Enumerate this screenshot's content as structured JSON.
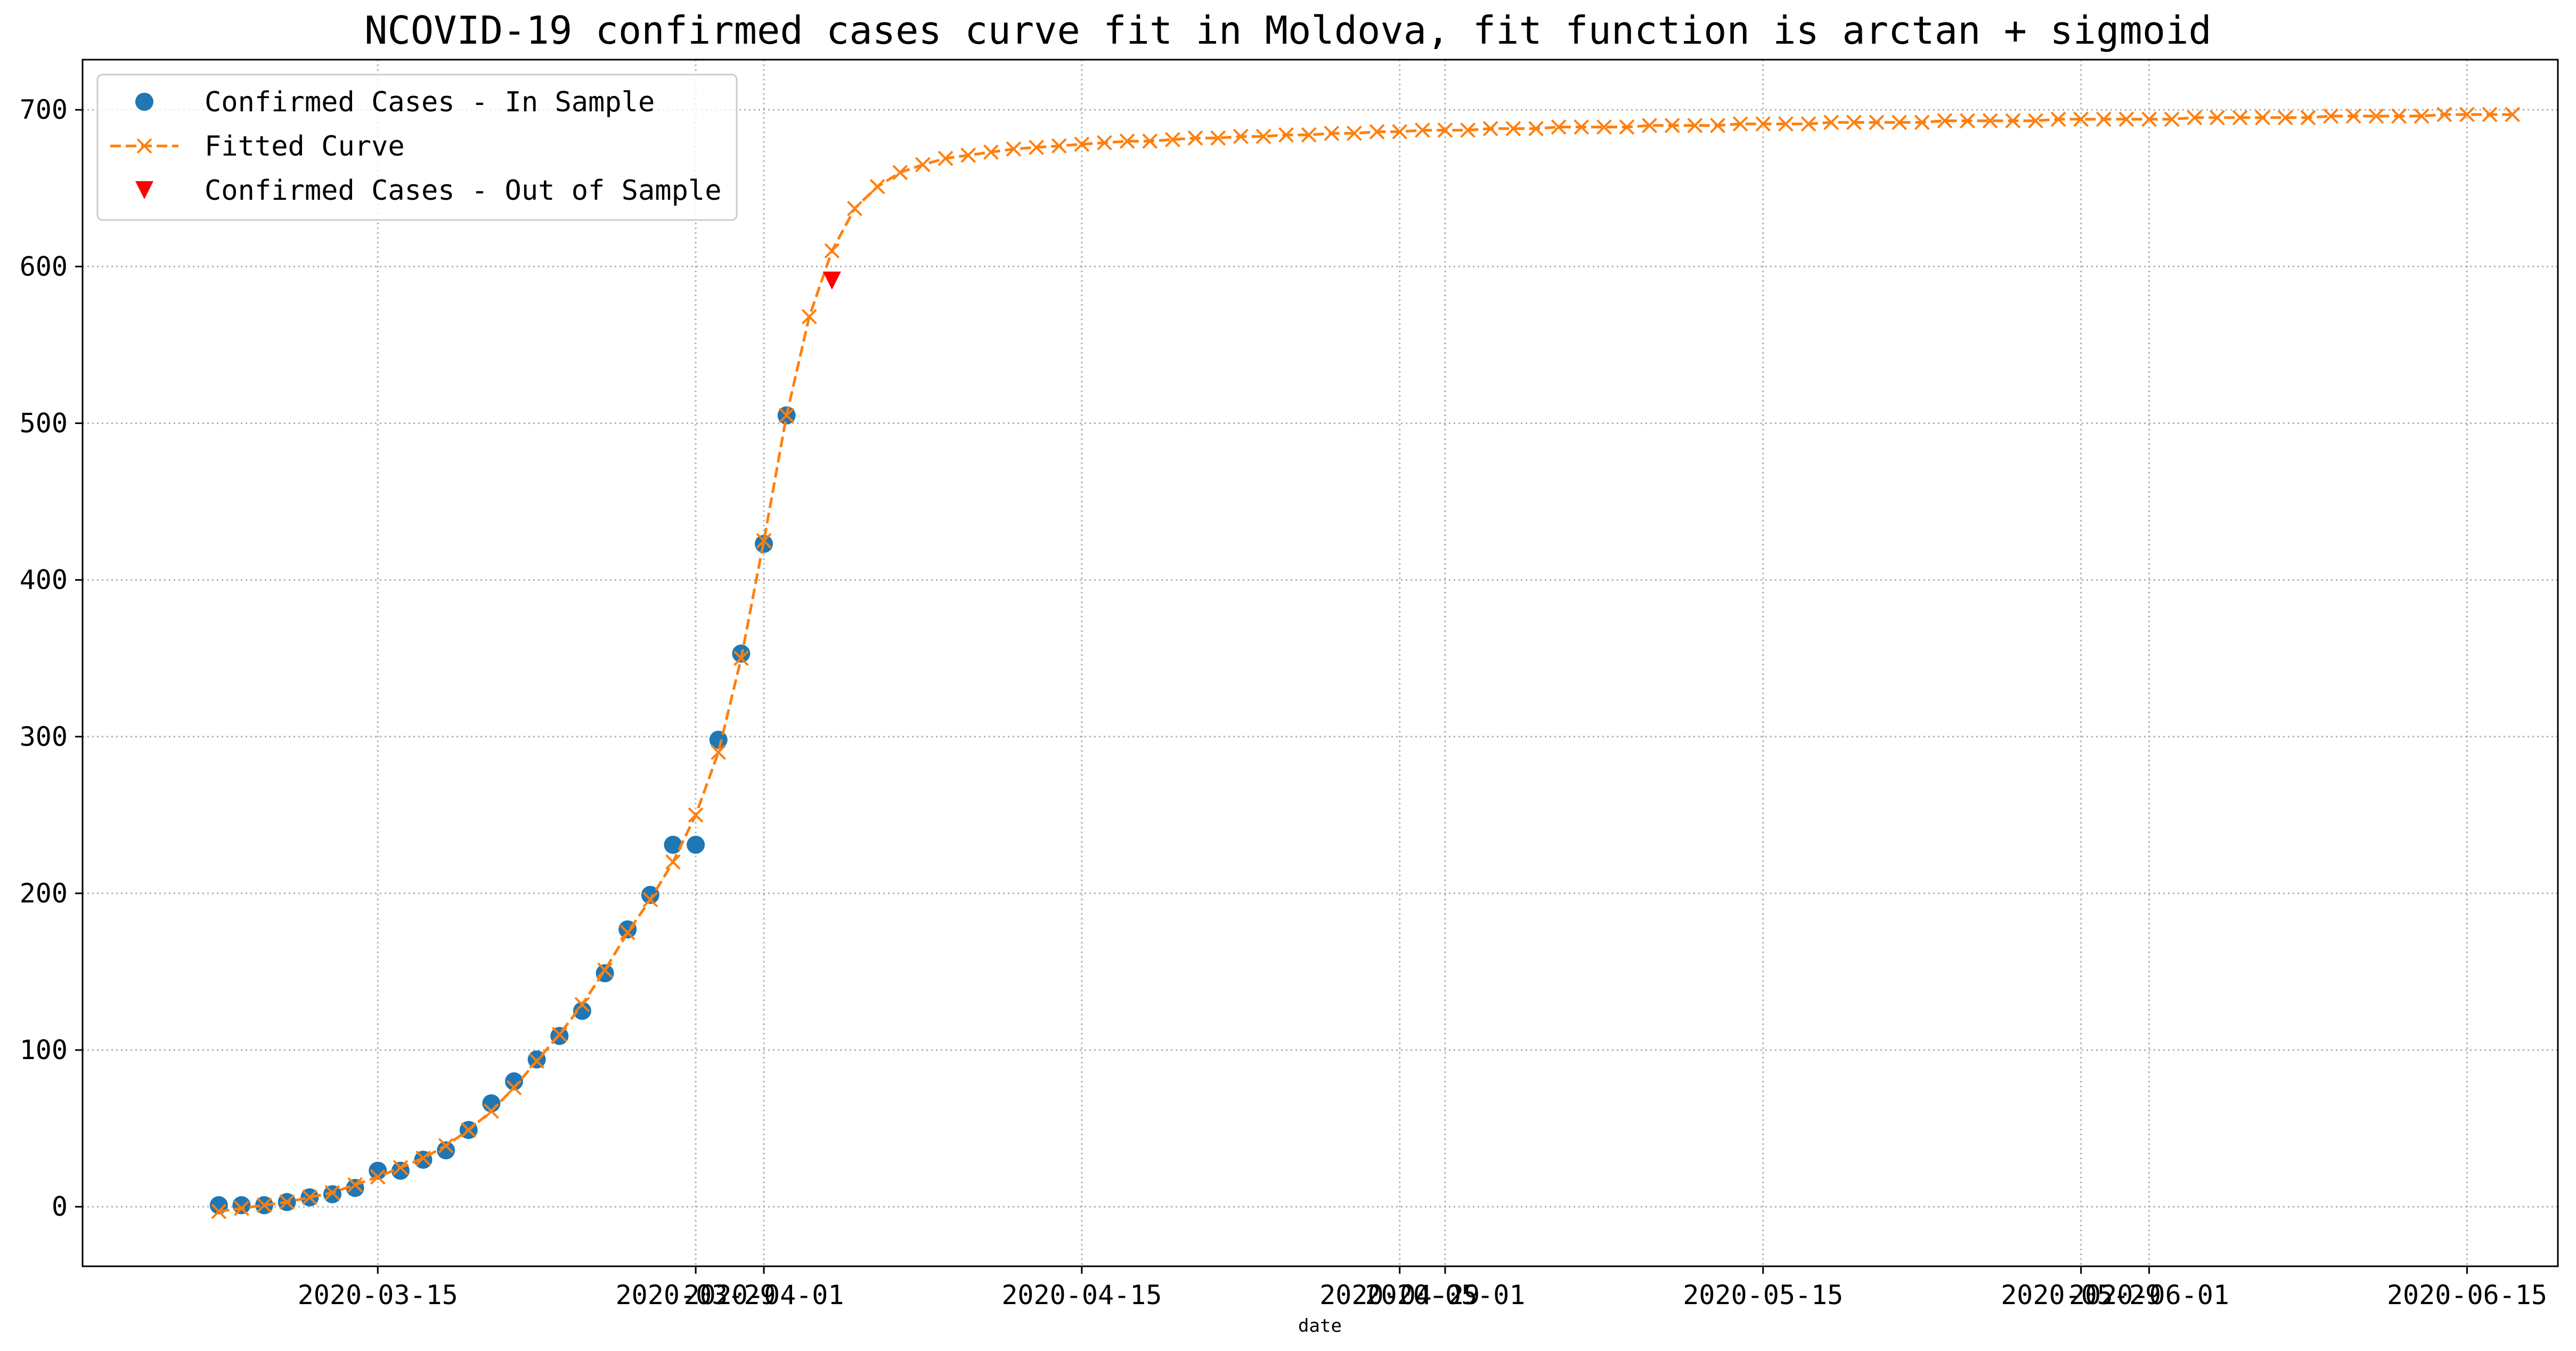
{
  "chart_data": {
    "type": "line",
    "title": "NCOVID-19 confirmed cases curve fit in Moldova, fit function is arctan + sigmoid",
    "xlabel": "date",
    "ylabel": "",
    "x_range": [
      "2020-03-02",
      "2020-06-19"
    ],
    "ylim": [
      -38,
      732
    ],
    "grid": true,
    "grid_style": "dotted",
    "legend_position": "upper-left",
    "colors": {
      "in_sample": "#1f77b4",
      "fitted": "#ff7f0e",
      "out_sample": "#ff0000",
      "grid": "#b0b0b0"
    },
    "x_ticks": [
      "2020-03-15",
      "2020-03-29",
      "2020-04-01",
      "2020-04-15",
      "2020-04-29",
      "2020-05-01",
      "2020-05-15",
      "2020-05-29",
      "2020-06-01",
      "2020-06-15"
    ],
    "y_ticks": [
      0,
      100,
      200,
      300,
      400,
      500,
      600,
      700
    ],
    "series": [
      {
        "name": "Confirmed Cases - In Sample",
        "marker": "circle",
        "start_date": "2020-03-08",
        "values": [
          1,
          1,
          1,
          3,
          6,
          8,
          12,
          23,
          23,
          30,
          36,
          49,
          66,
          80,
          94,
          109,
          125,
          149,
          177,
          199,
          231,
          231,
          298,
          353,
          423,
          505
        ]
      },
      {
        "name": "Fitted Curve",
        "marker": "x",
        "line_style": "dashed",
        "start_date": "2020-03-08",
        "values": [
          -3,
          -1,
          1,
          3,
          6,
          9,
          14,
          19,
          25,
          31,
          39,
          49,
          61,
          76,
          93,
          110,
          129,
          151,
          175,
          196,
          220,
          250,
          290,
          350,
          425,
          505,
          568,
          610,
          637,
          651,
          660,
          665,
          669,
          671,
          673,
          675,
          676,
          677,
          678,
          679,
          680,
          680,
          681,
          682,
          682,
          683,
          683,
          684,
          684,
          685,
          685,
          686,
          686,
          687,
          687,
          687,
          688,
          688,
          688,
          689,
          689,
          689,
          689,
          690,
          690,
          690,
          690,
          691,
          691,
          691,
          691,
          692,
          692,
          692,
          692,
          692,
          693,
          693,
          693,
          693,
          693,
          694,
          694,
          694,
          694,
          694,
          694,
          695,
          695,
          695,
          695,
          695,
          695,
          696,
          696,
          696,
          696,
          696,
          697,
          697,
          697,
          697
        ]
      },
      {
        "name": "Confirmed Cases - Out of Sample",
        "marker": "triangle-down",
        "start_date": "2020-04-04",
        "values": [
          591
        ]
      }
    ]
  }
}
